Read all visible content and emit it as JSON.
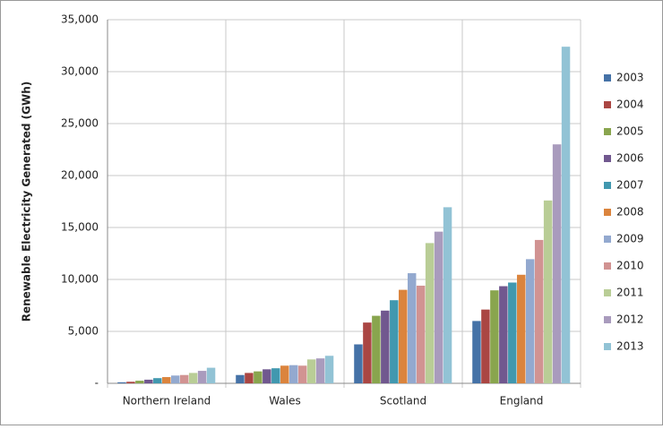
{
  "chart_data": {
    "type": "bar",
    "y_label": "Renewable Electricity Generated (GWh)",
    "categories": [
      "Northern Ireland",
      "Wales",
      "Scotland",
      "England"
    ],
    "series": [
      {
        "name": "2003",
        "color": "#4572a7",
        "values": [
          100,
          800,
          3750,
          6000
        ]
      },
      {
        "name": "2004",
        "color": "#aa4643",
        "values": [
          150,
          1000,
          5850,
          7100
        ]
      },
      {
        "name": "2005",
        "color": "#89a54e",
        "values": [
          250,
          1150,
          6500,
          8950
        ]
      },
      {
        "name": "2006",
        "color": "#71588f",
        "values": [
          350,
          1350,
          7000,
          9350
        ]
      },
      {
        "name": "2007",
        "color": "#4198af",
        "values": [
          500,
          1450,
          8000,
          9700
        ]
      },
      {
        "name": "2008",
        "color": "#db843d",
        "values": [
          600,
          1700,
          9000,
          10450
        ]
      },
      {
        "name": "2009",
        "color": "#93a9cf",
        "values": [
          750,
          1750,
          10600,
          11950
        ]
      },
      {
        "name": "2010",
        "color": "#d19392",
        "values": [
          800,
          1700,
          9400,
          13800
        ]
      },
      {
        "name": "2011",
        "color": "#b9cd96",
        "values": [
          1000,
          2300,
          13500,
          17600
        ]
      },
      {
        "name": "2012",
        "color": "#a99bbd",
        "values": [
          1200,
          2400,
          14600,
          23000
        ]
      },
      {
        "name": "2013",
        "color": "#92c3d5",
        "values": [
          1500,
          2650,
          16950,
          32400
        ]
      }
    ],
    "ylim": [
      0,
      35000
    ],
    "yticks": [
      {
        "value": 0,
        "label": "-"
      },
      {
        "value": 5000,
        "label": "5,000"
      },
      {
        "value": 10000,
        "label": "10,000"
      },
      {
        "value": 15000,
        "label": "15,000"
      },
      {
        "value": 20000,
        "label": "20,000"
      },
      {
        "value": 25000,
        "label": "25,000"
      },
      {
        "value": 30000,
        "label": "30,000"
      },
      {
        "value": 35000,
        "label": "35,000"
      }
    ],
    "grid": true,
    "legend": "right"
  }
}
